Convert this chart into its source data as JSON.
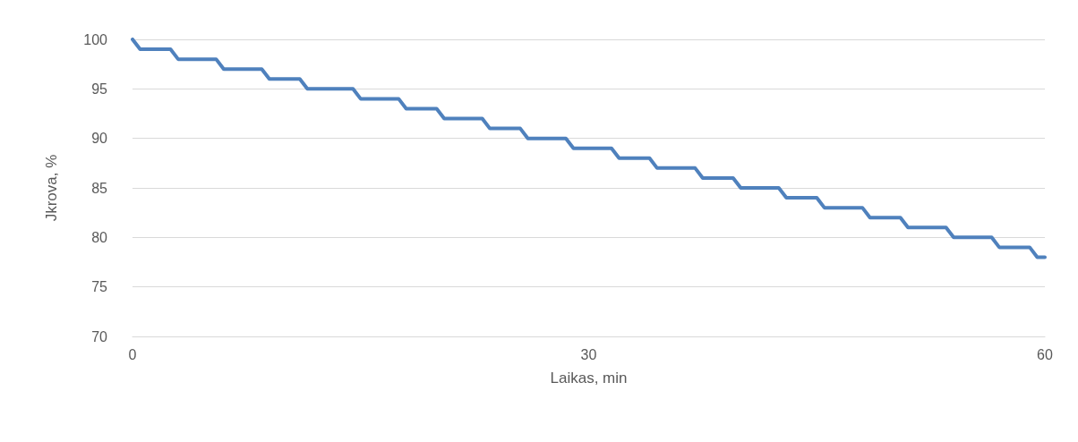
{
  "chart_data": {
    "type": "line",
    "xlabel": "Laikas, min",
    "ylabel": "Jkrova, %",
    "x": [
      0,
      0.5,
      2.5,
      3,
      5.5,
      6,
      8.5,
      9,
      11,
      11.5,
      14.5,
      15,
      17.5,
      18,
      20,
      20.5,
      23,
      23.5,
      25.5,
      26,
      28.5,
      29,
      31.5,
      32,
      34,
      34.5,
      37,
      37.5,
      39.5,
      40,
      42.5,
      43,
      45,
      45.5,
      48,
      48.5,
      50.5,
      51,
      53.5,
      54,
      56.5,
      57,
      59,
      59.5,
      60
    ],
    "series": [
      {
        "color": "#4f81bd",
        "values": [
          100,
          99,
          99,
          98,
          98,
          97,
          97,
          96,
          96,
          95,
          95,
          94,
          94,
          93,
          93,
          92,
          92,
          91,
          91,
          90,
          90,
          89,
          89,
          88,
          88,
          87,
          87,
          86,
          86,
          85,
          85,
          84,
          84,
          83,
          83,
          82,
          82,
          81,
          81,
          80,
          80,
          79,
          79,
          78,
          78
        ]
      }
    ],
    "xlim": [
      0,
      60
    ],
    "xticks": [
      0,
      30,
      60
    ],
    "ylim": [
      70,
      100
    ],
    "yticks": [
      70,
      75,
      80,
      85,
      90,
      95,
      100
    ],
    "grid": "y",
    "marker": "none",
    "line_style": "solid"
  }
}
